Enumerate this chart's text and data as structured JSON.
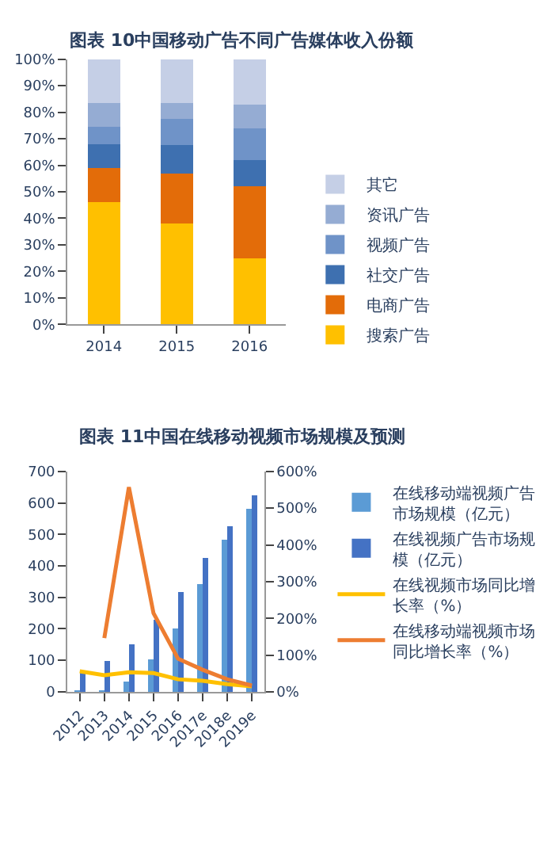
{
  "chart_data": [
    {
      "type": "bar",
      "title": "图表 10中国移动广告不同广告媒体收入份额",
      "stacked": true,
      "categories": [
        "2014",
        "2015",
        "2016"
      ],
      "ylim": [
        0,
        100
      ],
      "yticks": [
        {
          "value": 0,
          "label": "0%"
        },
        {
          "value": 10,
          "label": "10%"
        },
        {
          "value": 20,
          "label": "20%"
        },
        {
          "value": 30,
          "label": "30%"
        },
        {
          "value": 40,
          "label": "40%"
        },
        {
          "value": 50,
          "label": "50%"
        },
        {
          "value": 60,
          "label": "60%"
        },
        {
          "value": 70,
          "label": "70%"
        },
        {
          "value": 80,
          "label": "80%"
        },
        {
          "value": 90,
          "label": "90%"
        },
        {
          "value": 100,
          "label": "100%"
        }
      ],
      "legend": "right",
      "series": [
        {
          "name": "搜索广告",
          "color": "#ffc000",
          "values": [
            46,
            38,
            25
          ]
        },
        {
          "name": "电商广告",
          "color": "#e36c09",
          "values": [
            13,
            19,
            27
          ]
        },
        {
          "name": "社交广告",
          "color": "#3e70b0",
          "values": [
            9,
            10.5,
            10
          ]
        },
        {
          "name": "视频广告",
          "color": "#6f93c8",
          "values": [
            6.5,
            10,
            12
          ]
        },
        {
          "name": "资讯广告",
          "color": "#95acd3",
          "values": [
            9,
            6,
            9
          ]
        },
        {
          "name": "其它",
          "color": "#c5cfe6",
          "values": [
            16.5,
            16.5,
            17
          ]
        }
      ]
    },
    {
      "type": "bar",
      "title": "图表 11中国在线移动视频市场规模及预测",
      "categories": [
        "2012",
        "2013",
        "2014",
        "2015",
        "2016",
        "2017e",
        "2018e",
        "2019e"
      ],
      "ylim": [
        0,
        700
      ],
      "yticks": [
        0,
        100,
        200,
        300,
        400,
        500,
        600,
        700
      ],
      "y2lim": [
        0,
        600
      ],
      "y2ticks": [
        {
          "value": 0,
          "label": "0%"
        },
        {
          "value": 100,
          "label": "100%"
        },
        {
          "value": 200,
          "label": "200%"
        },
        {
          "value": 300,
          "label": "300%"
        },
        {
          "value": 400,
          "label": "400%"
        },
        {
          "value": 500,
          "label": "500%"
        },
        {
          "value": 600,
          "label": "600%"
        }
      ],
      "legend": "right",
      "marker": "none",
      "series": [
        {
          "name": "在线移动端视频广告市场规模（亿元）",
          "color": "#5b9bd5",
          "values": [
            2,
            5,
            33,
            102,
            202,
            342,
            483,
            580
          ]
        },
        {
          "name": "在线视频广告市场规模（亿元）",
          "color": "#4472c4",
          "values": [
            62,
            97,
            152,
            230,
            318,
            425,
            525,
            625
          ]
        },
        {
          "name": "在线视频市场同比增长率（%）",
          "type": "line",
          "axis": "y2",
          "color": "#ffc000",
          "values": [
            56,
            45,
            53,
            51,
            34,
            30,
            21,
            15
          ]
        },
        {
          "name": "在线移动端视频市场同比增长率（%）",
          "type": "line",
          "axis": "y2",
          "color": "#ed7d31",
          "values": [
            null,
            146,
            557,
            214,
            90,
            60,
            34,
            17
          ]
        }
      ]
    }
  ]
}
